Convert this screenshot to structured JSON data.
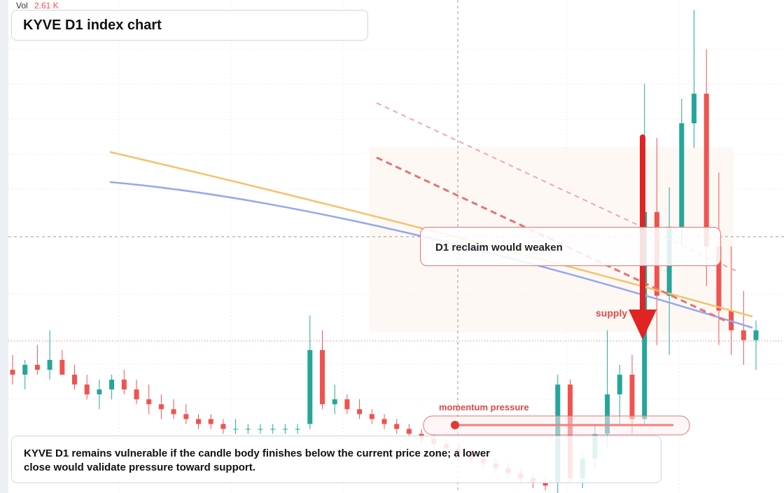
{
  "chart_data": {
    "type": "candlestick",
    "title": "KYVE D1 index chart",
    "volume_label": "Vol",
    "volume_value": "2.61 K",
    "callout": "D1 reclaim would weaken",
    "zone_label": "supply",
    "meter_label": "momentum pressure",
    "caption": "KYVE D1 remains vulnerable if the candle body finishes below the current price zone; a lower close would validate pressure toward support.",
    "ylim": [
      0,
      100
    ],
    "up_color": "#26a69a",
    "down_color": "#ef5350",
    "open": [
      25,
      24,
      26,
      25,
      27,
      24,
      22,
      20,
      21,
      23,
      21,
      19,
      18,
      17,
      16,
      15,
      15,
      14,
      13,
      13,
      13,
      13,
      13,
      13,
      14,
      29,
      18,
      19,
      17,
      16,
      15,
      14,
      13,
      12,
      11,
      10,
      9,
      8,
      7,
      6,
      5,
      4,
      3,
      2,
      2,
      22,
      3,
      7,
      12,
      20,
      24,
      15,
      57,
      40,
      54,
      75,
      81,
      50,
      37,
      33,
      31
    ],
    "high": [
      28,
      27,
      30,
      33,
      29,
      26,
      24,
      23,
      24,
      25,
      23,
      22,
      20,
      19,
      18,
      16,
      16,
      15,
      15,
      14,
      14,
      14,
      14,
      14,
      36,
      33,
      22,
      20,
      19,
      17,
      16,
      15,
      14,
      13,
      12,
      11,
      10,
      9,
      8,
      7,
      6,
      5,
      4,
      3,
      24,
      23,
      8,
      14,
      33,
      26,
      28,
      83,
      72,
      62,
      80,
      98,
      90,
      65,
      50,
      41,
      35
    ],
    "low": [
      22,
      21,
      24,
      23,
      24,
      21,
      19,
      17,
      19,
      20,
      18,
      16,
      15,
      15,
      14,
      13,
      13,
      12,
      12,
      12,
      12,
      12,
      12,
      12,
      13,
      17,
      16,
      16,
      15,
      14,
      13,
      12,
      11,
      10,
      9,
      8,
      7,
      6,
      5,
      4,
      3,
      2,
      1,
      0.5,
      0,
      2,
      1,
      5,
      9,
      14,
      12,
      14,
      30,
      28,
      50,
      70,
      42,
      30,
      28,
      26,
      25
    ],
    "close": [
      24,
      26,
      25,
      27,
      24,
      22,
      20,
      21,
      23,
      21,
      19,
      18,
      17,
      16,
      15,
      14,
      14,
      13,
      13,
      13,
      13,
      13,
      13,
      13,
      29,
      18,
      19,
      17,
      16,
      15,
      14,
      13,
      12,
      11,
      10,
      9,
      8,
      7,
      6,
      5,
      4,
      3,
      2,
      1.5,
      22,
      3,
      7,
      12,
      20,
      24,
      15,
      57,
      40,
      54,
      75,
      81,
      50,
      37,
      33,
      31,
      33
    ]
  }
}
